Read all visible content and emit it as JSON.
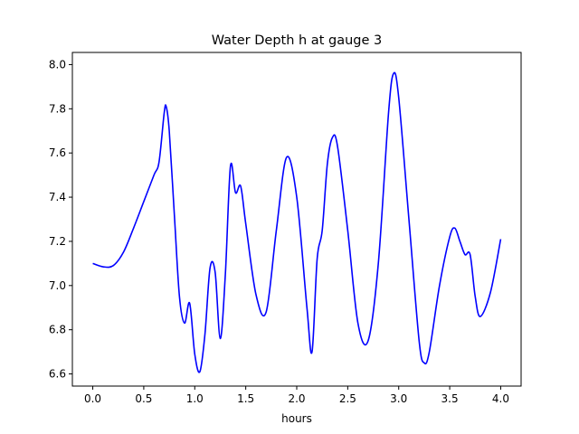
{
  "chart_data": {
    "type": "line",
    "title": "Water Depth h at gauge 3",
    "xlabel": "hours",
    "ylabel": "",
    "xlim": [
      -0.2,
      4.2
    ],
    "ylim": [
      6.545,
      8.055
    ],
    "x_ticks": [
      0.0,
      0.5,
      1.0,
      1.5,
      2.0,
      2.5,
      3.0,
      3.5,
      4.0
    ],
    "x_tick_labels": [
      "0.0",
      "0.5",
      "1.0",
      "1.5",
      "2.0",
      "2.5",
      "3.0",
      "3.5",
      "4.0"
    ],
    "y_ticks": [
      6.6,
      6.8,
      7.0,
      7.2,
      7.4,
      7.6,
      7.8,
      8.0
    ],
    "y_tick_labels": [
      "6.6",
      "6.8",
      "7.0",
      "7.2",
      "7.4",
      "7.6",
      "7.8",
      "8.0"
    ],
    "grid": false,
    "series": [
      {
        "color": "#0000ff",
        "points": [
          [
            0.0,
            7.1
          ],
          [
            0.1,
            7.085
          ],
          [
            0.2,
            7.09
          ],
          [
            0.3,
            7.15
          ],
          [
            0.4,
            7.26
          ],
          [
            0.5,
            7.38
          ],
          [
            0.6,
            7.5
          ],
          [
            0.65,
            7.56
          ],
          [
            0.7,
            7.78
          ],
          [
            0.72,
            7.81
          ],
          [
            0.75,
            7.7
          ],
          [
            0.8,
            7.32
          ],
          [
            0.85,
            6.95
          ],
          [
            0.9,
            6.83
          ],
          [
            0.95,
            6.92
          ],
          [
            1.0,
            6.69
          ],
          [
            1.05,
            6.61
          ],
          [
            1.1,
            6.78
          ],
          [
            1.15,
            7.08
          ],
          [
            1.2,
            7.06
          ],
          [
            1.25,
            6.76
          ],
          [
            1.3,
            7.05
          ],
          [
            1.35,
            7.54
          ],
          [
            1.4,
            7.42
          ],
          [
            1.45,
            7.45
          ],
          [
            1.5,
            7.28
          ],
          [
            1.6,
            6.96
          ],
          [
            1.7,
            6.88
          ],
          [
            1.8,
            7.25
          ],
          [
            1.9,
            7.58
          ],
          [
            2.0,
            7.4
          ],
          [
            2.1,
            6.9
          ],
          [
            2.15,
            6.7
          ],
          [
            2.2,
            7.12
          ],
          [
            2.25,
            7.25
          ],
          [
            2.3,
            7.55
          ],
          [
            2.35,
            7.67
          ],
          [
            2.4,
            7.63
          ],
          [
            2.5,
            7.25
          ],
          [
            2.6,
            6.83
          ],
          [
            2.7,
            6.75
          ],
          [
            2.8,
            7.1
          ],
          [
            2.9,
            7.78
          ],
          [
            2.95,
            7.96
          ],
          [
            3.0,
            7.85
          ],
          [
            3.1,
            7.3
          ],
          [
            3.2,
            6.75
          ],
          [
            3.25,
            6.65
          ],
          [
            3.3,
            6.7
          ],
          [
            3.4,
            7.0
          ],
          [
            3.5,
            7.22
          ],
          [
            3.55,
            7.26
          ],
          [
            3.6,
            7.2
          ],
          [
            3.65,
            7.14
          ],
          [
            3.7,
            7.14
          ],
          [
            3.75,
            6.95
          ],
          [
            3.8,
            6.86
          ],
          [
            3.9,
            6.97
          ],
          [
            4.0,
            7.21
          ]
        ]
      }
    ]
  }
}
